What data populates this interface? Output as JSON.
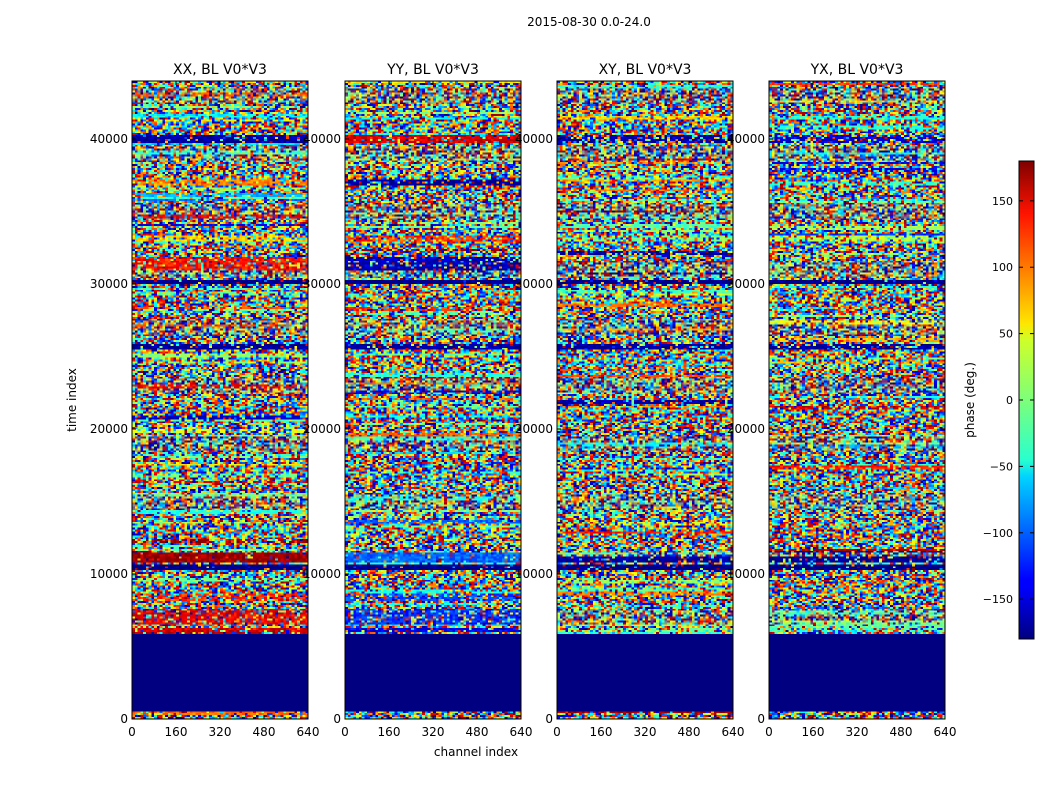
{
  "chart_data": {
    "type": "heatmap",
    "suptitle": "2015-08-30 0.0-24.0",
    "xlabel": "channel index",
    "ylabel": "time index",
    "xlim": [
      0,
      640
    ],
    "ylim": [
      0,
      44000
    ],
    "xticks": [
      0,
      160,
      320,
      480,
      640
    ],
    "yticks": [
      0,
      10000,
      20000,
      30000,
      40000
    ],
    "panels": [
      {
        "title": "XX, BL V0*V3",
        "pol": "XX"
      },
      {
        "title": "YY, BL V0*V3",
        "pol": "YY"
      },
      {
        "title": "XY, BL V0*V3",
        "pol": "XY"
      },
      {
        "title": "YX, BL V0*V3",
        "pol": "YX"
      }
    ],
    "colorbar": {
      "label": "phase (deg.)",
      "range": [
        -180,
        180
      ],
      "ticks": [
        -150,
        -100,
        -50,
        0,
        50,
        100,
        150
      ],
      "tick_labels": [
        "−150",
        "−100",
        "−50",
        "0",
        "50",
        "100",
        "150"
      ],
      "colormap": "jet"
    },
    "notes": {
      "flagged_time_range": [
        500,
        5800
      ],
      "flagged_value_deg": -180
    }
  }
}
